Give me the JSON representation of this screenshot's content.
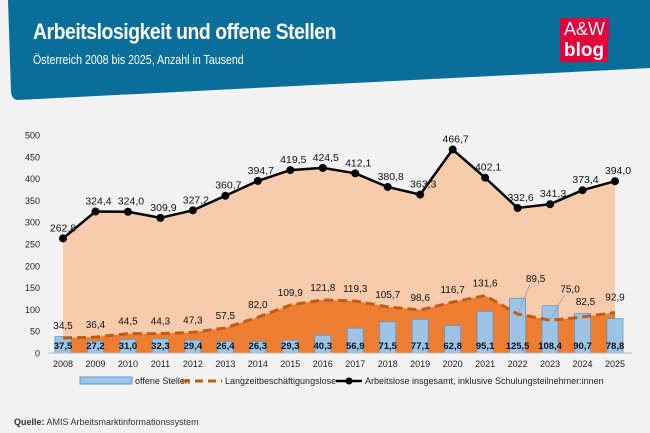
{
  "header": {
    "title": "Arbeitslosigkeit und offene Stellen",
    "subtitle": "Österreich 2008 bis 2025, Anzahl in Tausend",
    "logo_line1": "A&W",
    "logo_line2": "blog",
    "color": "#0a6e9a",
    "logo_color": "#e4003a"
  },
  "source": {
    "label": "Quelle:",
    "text": "AMIS Arbeitsmarktinformationssystem"
  },
  "chart_data": {
    "type": "bar+line",
    "categories": [
      "2008",
      "2009",
      "2010",
      "2011",
      "2012",
      "2013",
      "2014",
      "2015",
      "2016",
      "2017",
      "2018",
      "2019",
      "2020",
      "2021",
      "2022",
      "2023",
      "2024",
      "2025"
    ],
    "ylim": [
      0,
      500
    ],
    "yticks": [
      0,
      50,
      100,
      150,
      200,
      250,
      300,
      350,
      400,
      450,
      500
    ],
    "grid": false,
    "legend_position": "bottom",
    "series": [
      {
        "name": "offene Stellen",
        "kind": "bar",
        "color": "#9dc3e6",
        "values": [
          37.5,
          27.2,
          31.0,
          32.3,
          29.4,
          26.4,
          26.3,
          29.3,
          40.3,
          56.9,
          71.5,
          77.1,
          62.8,
          95.1,
          125.5,
          108.4,
          90.7,
          78.8
        ],
        "labels": [
          "37,5",
          "27,2",
          "31,0",
          "32,3",
          "29,4",
          "26,4",
          "26,3",
          "29,3",
          "40,3",
          "56,9",
          "71,5",
          "77,1",
          "62,8",
          "95,1",
          "125,5",
          "108,4",
          "90,7",
          "78,8"
        ]
      },
      {
        "name": "Langzeitbeschäftigungslose",
        "kind": "dashed-line-area",
        "color": "#c55a11",
        "area_color": "#ed7d31",
        "values": [
          34.5,
          36.4,
          44.5,
          44.3,
          47.3,
          57.5,
          82.0,
          109.9,
          121.8,
          119.3,
          105.7,
          98.6,
          116.7,
          131.6,
          89.5,
          75.0,
          82.5,
          92.9
        ],
        "labels": [
          "34,5",
          "36,4",
          "44,5",
          "44,3",
          "47,3",
          "57,5",
          "82,0",
          "109,9",
          "121,8",
          "119,3",
          "105,7",
          "98,6",
          "116,7",
          "131,6",
          "89,5",
          "75,0",
          "82,5",
          "92,9"
        ]
      },
      {
        "name": "Arbeitslose insgesamt, inklusive Schulungsteilnehmer:innen",
        "kind": "line-area",
        "color": "#000000",
        "area_color": "#f8cbad",
        "values": [
          262.8,
          324.4,
          324.0,
          309.9,
          327.2,
          360.7,
          394.7,
          419.5,
          424.5,
          412.1,
          380.8,
          363.3,
          466.7,
          402.1,
          332.6,
          341.3,
          373.4,
          394.0
        ],
        "labels": [
          "262,8",
          "324,4",
          "324,0",
          "309,9",
          "327,2",
          "360,7",
          "394,7",
          "419,5",
          "424,5",
          "412,1",
          "380,8",
          "363,3",
          "466,7",
          "402,1",
          "332,6",
          "341,3",
          "373,4",
          "394,0"
        ]
      }
    ]
  }
}
